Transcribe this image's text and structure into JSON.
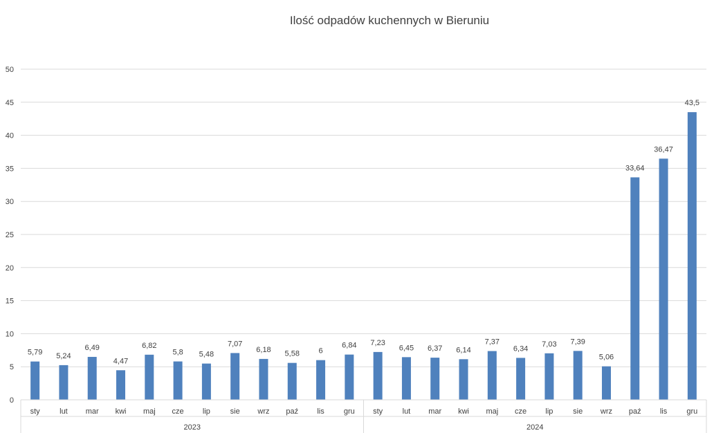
{
  "chart_data": {
    "type": "bar",
    "title": "Ilość odpadów kuchennych w Bieruniu",
    "xlabel": "",
    "ylabel": "",
    "ylim": [
      0,
      50
    ],
    "yticks": [
      "0",
      "5",
      "10",
      "15",
      "20",
      "25",
      "30",
      "35",
      "40",
      "45",
      "50"
    ],
    "grid": true,
    "legend": "none",
    "bar_color": "#4f81bd",
    "groups": [
      {
        "name": "2023",
        "categories": [
          "sty",
          "lut",
          "mar",
          "kwi",
          "maj",
          "cze",
          "lip",
          "sie",
          "wrz",
          "paź",
          "lis",
          "gru"
        ],
        "values": [
          5.79,
          5.24,
          6.49,
          4.47,
          6.82,
          5.8,
          5.48,
          7.07,
          6.18,
          5.58,
          6,
          6.84
        ],
        "labels": [
          "5,79",
          "5,24",
          "6,49",
          "4,47",
          "6,82",
          "5,8",
          "5,48",
          "7,07",
          "6,18",
          "5,58",
          "6",
          "6,84"
        ]
      },
      {
        "name": "2024",
        "categories": [
          "sty",
          "lut",
          "mar",
          "kwi",
          "maj",
          "cze",
          "lip",
          "sie",
          "wrz",
          "paź",
          "lis",
          "gru"
        ],
        "values": [
          7.23,
          6.45,
          6.37,
          6.14,
          7.37,
          6.34,
          7.03,
          7.39,
          5.06,
          33.64,
          36.47,
          43.5
        ],
        "labels": [
          "7,23",
          "6,45",
          "6,37",
          "6,14",
          "7,37",
          "6,34",
          "7,03",
          "7,39",
          "5,06",
          "33,64",
          "36,47",
          "43,5"
        ]
      }
    ]
  }
}
